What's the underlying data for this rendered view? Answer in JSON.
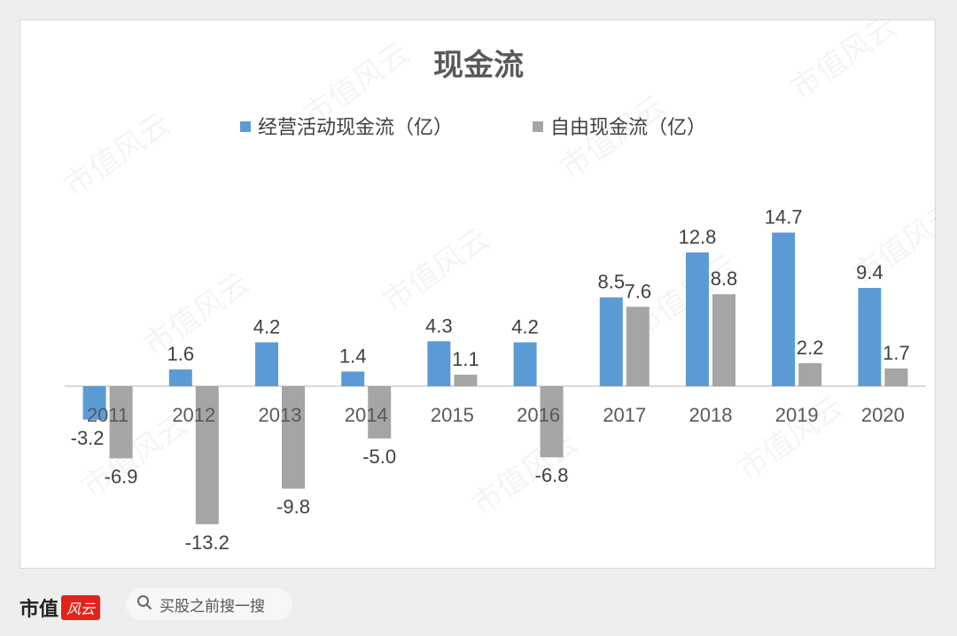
{
  "chart_data": {
    "type": "bar",
    "title": "现金流",
    "categories": [
      "2011",
      "2012",
      "2013",
      "2014",
      "2015",
      "2016",
      "2017",
      "2018",
      "2019",
      "2020"
    ],
    "series": [
      {
        "name": "经营活动现金流（亿）",
        "values": [
          -3.2,
          1.6,
          4.2,
          1.4,
          4.3,
          4.2,
          8.5,
          12.8,
          14.7,
          9.4
        ],
        "color": "#5b9bd5"
      },
      {
        "name": "自由现金流（亿）",
        "values": [
          -6.9,
          -13.2,
          -9.8,
          -5.0,
          1.1,
          -6.8,
          7.6,
          8.8,
          2.2,
          1.7
        ],
        "color": "#a5a5a5"
      }
    ],
    "data_labels": true,
    "legend": "top",
    "grid": false
  },
  "footer": {
    "brand": "市值",
    "brand_logo": "风云",
    "search_icon": "search-icon",
    "search_text": "买股之前搜一搜"
  },
  "watermark": "市值风云"
}
